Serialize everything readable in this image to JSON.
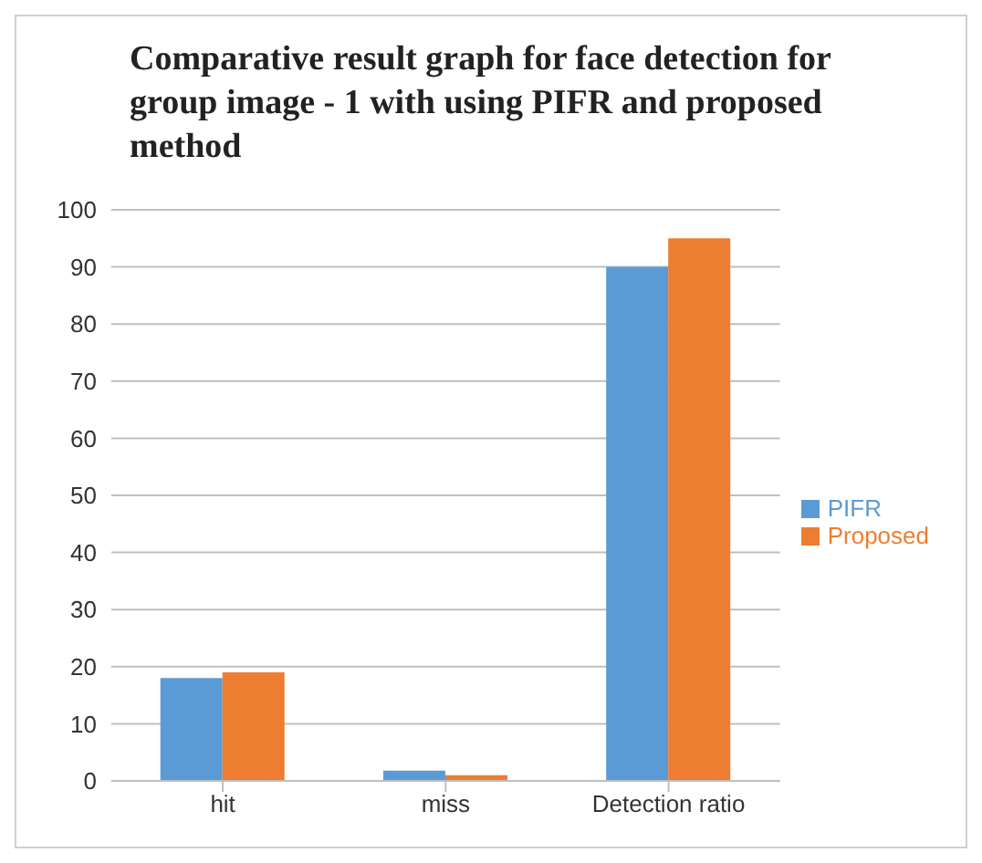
{
  "chart_data": {
    "type": "bar",
    "title": "Comparative result graph for face detection for group image - 1 with using PIFR and proposed method",
    "categories": [
      "hit",
      "miss",
      "Detection ratio"
    ],
    "series": [
      {
        "name": "PIFR",
        "color": "#5b9bd5",
        "values": [
          18,
          1.8,
          90
        ]
      },
      {
        "name": "Proposed",
        "color": "#ed7d31",
        "values": [
          19,
          1,
          95
        ]
      }
    ],
    "ylim": [
      0,
      100
    ],
    "yticks": [
      0,
      10,
      20,
      30,
      40,
      50,
      60,
      70,
      80,
      90,
      100
    ],
    "grid": "y",
    "legend": "right"
  }
}
